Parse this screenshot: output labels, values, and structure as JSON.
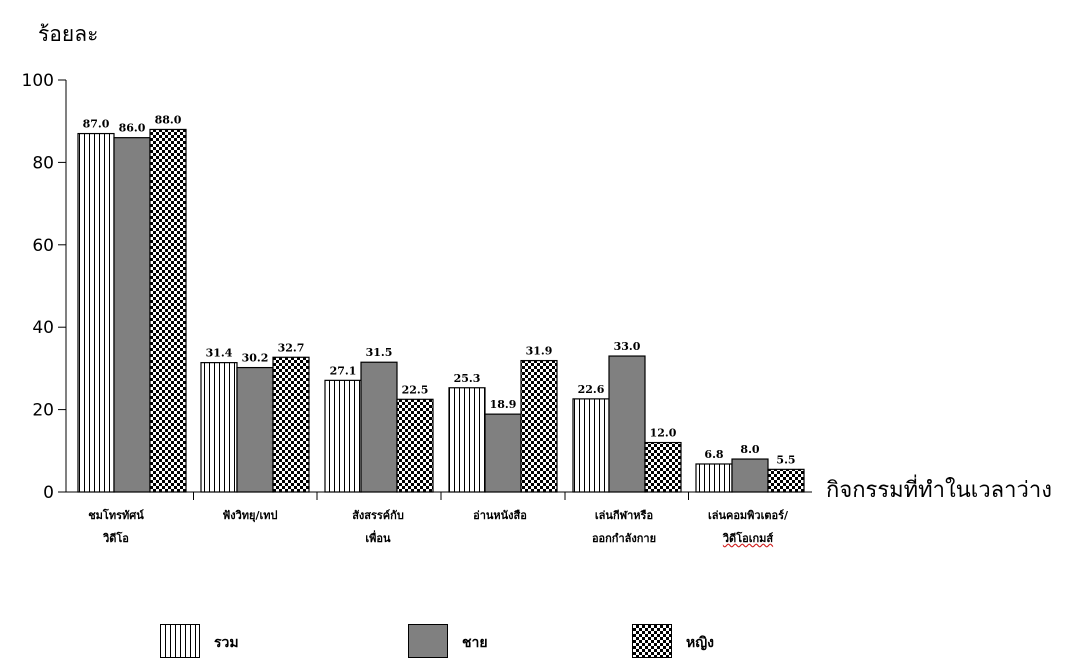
{
  "chart_data": {
    "type": "bar",
    "ylabel": "ร้อยละ",
    "xlabel": "กิจกรรมที่ทำในเวลาว่าง",
    "ylim": [
      0,
      100
    ],
    "yticks": [
      0,
      20,
      40,
      60,
      80,
      100
    ],
    "categories": [
      [
        "ชมโทรทัศน์",
        "วิดีโอ"
      ],
      [
        "ฟังวิทยุ/เทป",
        ""
      ],
      [
        "สังสรรค์กับ",
        "เพื่อน"
      ],
      [
        "อ่านหนังสือ",
        ""
      ],
      [
        "เล่นกีฬาหรือ",
        "ออกกำลังกาย"
      ],
      [
        "เล่นคอมพิวเตอร์/",
        "วิดีโอเกมส์"
      ]
    ],
    "series": [
      {
        "name": "รวม",
        "pattern": "vertical-lines",
        "values": [
          87.0,
          31.4,
          27.1,
          25.3,
          22.6,
          6.8
        ],
        "labels": [
          "87.0",
          "31.4",
          "27.1",
          "25.3",
          "22.6",
          "6.8"
        ]
      },
      {
        "name": "ชาย",
        "pattern": "solid-gray",
        "color": "#808080",
        "values": [
          86.0,
          30.2,
          31.5,
          18.9,
          33.0,
          8.0
        ],
        "labels": [
          "86.0",
          "30.2",
          "31.5",
          "18.9",
          "33.0",
          "8.0"
        ]
      },
      {
        "name": "หญิง",
        "pattern": "checker",
        "values": [
          88.0,
          32.7,
          22.5,
          31.9,
          12.0,
          5.5
        ],
        "labels": [
          "88.0",
          "32.7",
          "22.5",
          "31.9",
          "12.0",
          "5.5"
        ]
      }
    ],
    "legend": "bottom",
    "grid": false
  }
}
